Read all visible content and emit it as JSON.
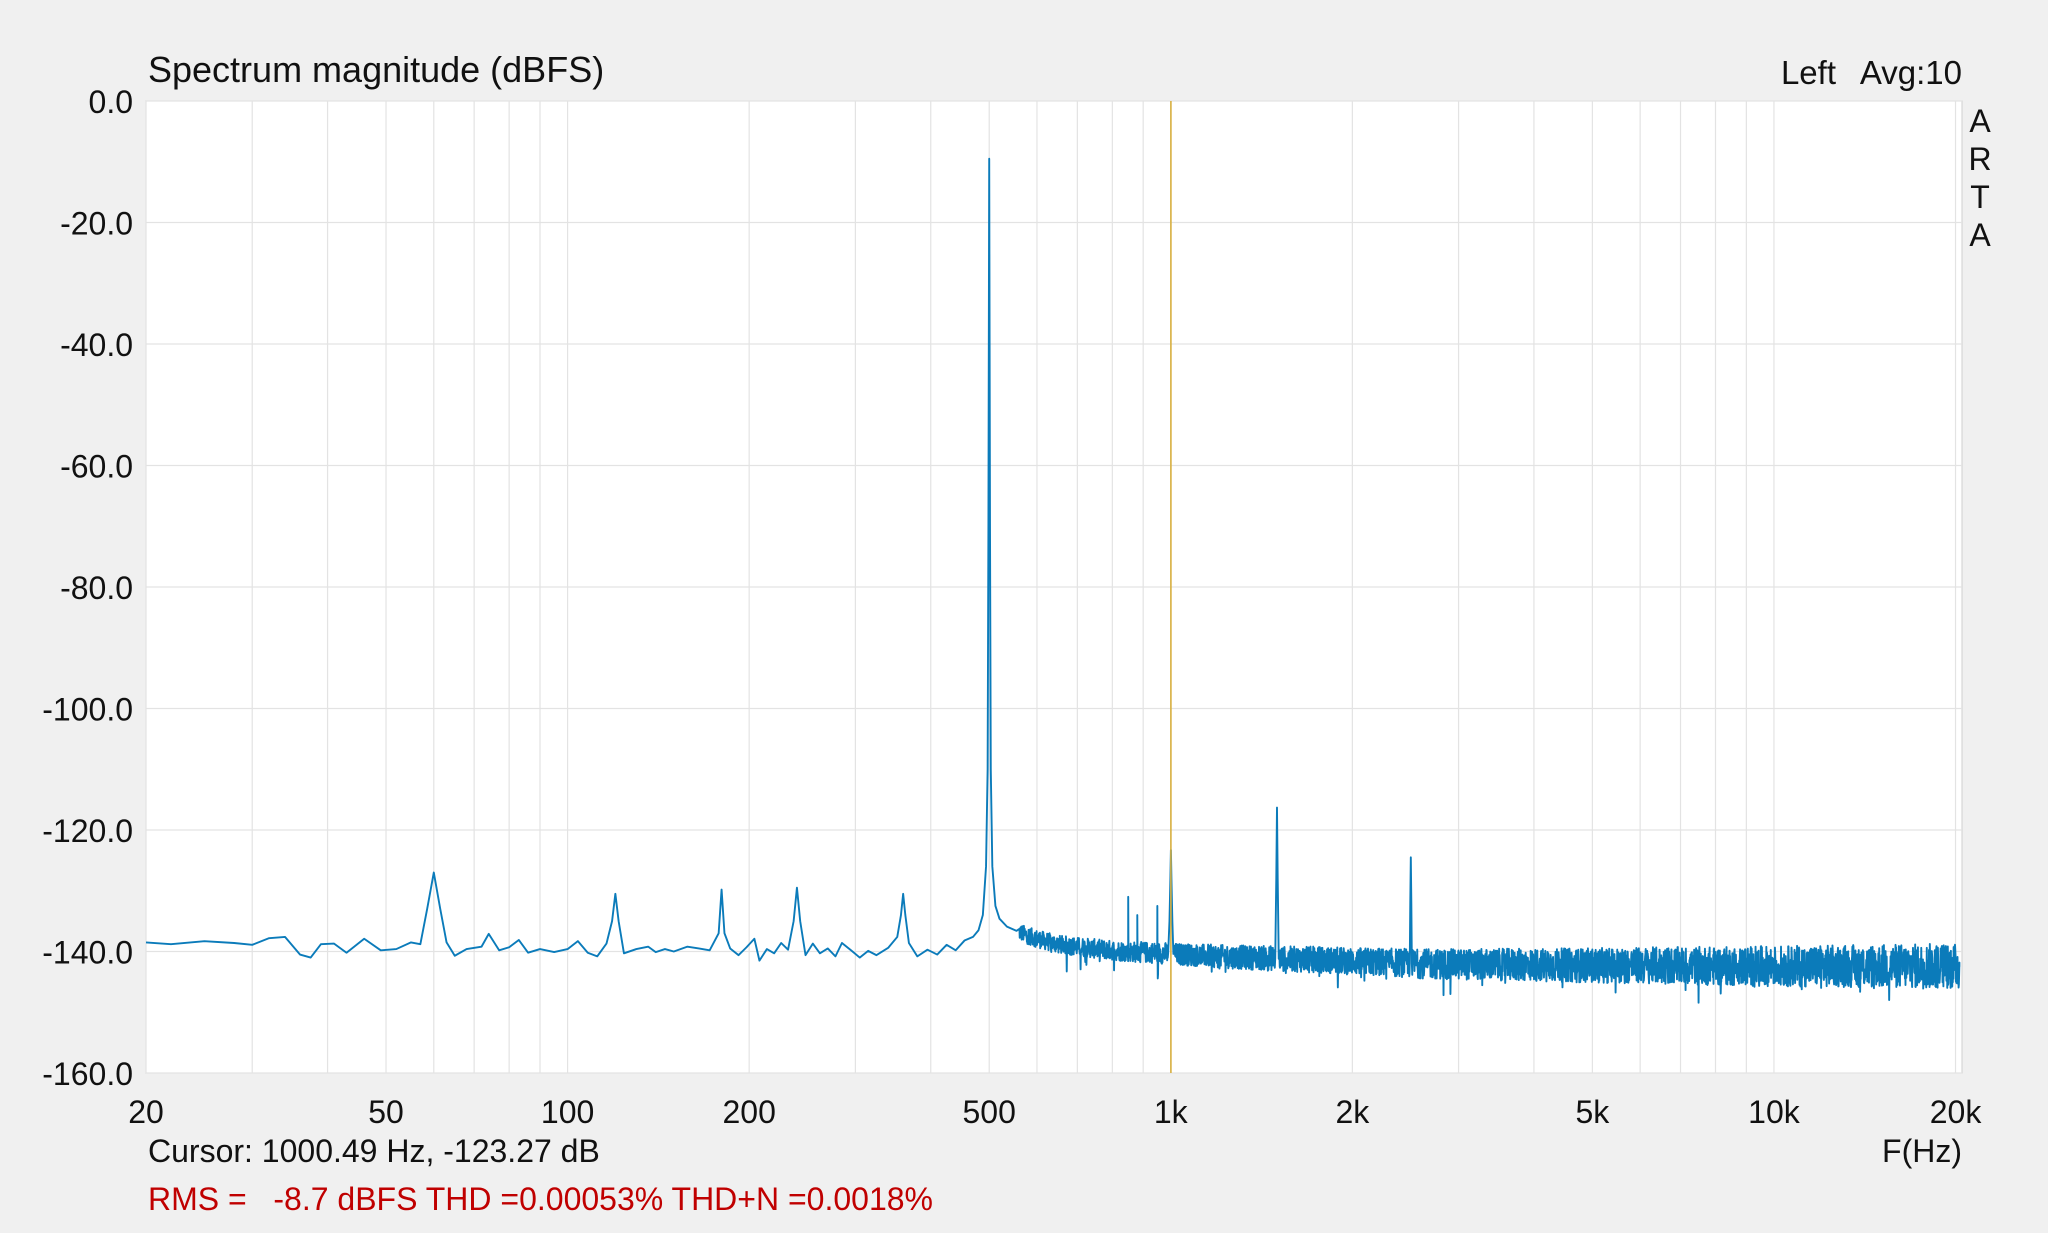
{
  "chart_data": {
    "type": "line",
    "title": "Spectrum magnitude (dBFS)",
    "xlabel": "F(Hz)",
    "ylabel": "",
    "x_scale": "log",
    "xlim": [
      20,
      20500
    ],
    "ylim": [
      -160,
      0
    ],
    "grid": true,
    "channel_label": "Left",
    "avg_label": "Avg:10",
    "side_label": [
      "A",
      "R",
      "T",
      "A"
    ],
    "y_ticks": [
      {
        "value": 0,
        "label": "0.0"
      },
      {
        "value": -20,
        "label": "-20.0"
      },
      {
        "value": -40,
        "label": "-40.0"
      },
      {
        "value": -60,
        "label": "-60.0"
      },
      {
        "value": -80,
        "label": "-80.0"
      },
      {
        "value": -100,
        "label": "-100.0"
      },
      {
        "value": -120,
        "label": "-120.0"
      },
      {
        "value": -140,
        "label": "-140.0"
      },
      {
        "value": -160,
        "label": "-160.0"
      }
    ],
    "x_ticks": [
      {
        "value": 20,
        "label": "20"
      },
      {
        "value": 50,
        "label": "50"
      },
      {
        "value": 100,
        "label": "100"
      },
      {
        "value": 200,
        "label": "200"
      },
      {
        "value": 500,
        "label": "500"
      },
      {
        "value": 1000,
        "label": "1k"
      },
      {
        "value": 2000,
        "label": "2k"
      },
      {
        "value": 5000,
        "label": "5k"
      },
      {
        "value": 10000,
        "label": "10k"
      },
      {
        "value": 20000,
        "label": "20k"
      }
    ],
    "x_minor_grid": [
      30,
      40,
      60,
      70,
      80,
      90,
      300,
      400,
      600,
      700,
      800,
      900,
      3000,
      4000,
      6000,
      7000,
      8000,
      9000
    ],
    "cursor": {
      "frequency_hz": 1000.49,
      "level_db": -123.27
    },
    "cursor_readout": "Cursor: 1000.49 Hz, -123.27 dB",
    "stats_readout": "RMS =   -8.7 dBFS THD =0.00053% THD+N =0.0018%",
    "colors": {
      "trace": "#0b7bba",
      "cursor": "#d8b040",
      "grid": "#e3e3e3",
      "stats_text": "#c00000",
      "background": "#f0f0f0",
      "plot_background": "#ffffff"
    },
    "series": [
      {
        "color": "#0b7bba",
        "noise_floor_db": -138.5,
        "points": [
          [
            20,
            -138.5
          ],
          [
            22,
            -138.8
          ],
          [
            25,
            -138.3
          ],
          [
            28,
            -138.6
          ],
          [
            30,
            -138.9
          ],
          [
            32,
            -137.8
          ],
          [
            34,
            -137.6
          ],
          [
            36,
            -140.5
          ],
          [
            37.5,
            -141.0
          ],
          [
            39,
            -138.8
          ],
          [
            41,
            -138.7
          ],
          [
            43,
            -140.2
          ],
          [
            46,
            -137.9
          ],
          [
            49,
            -139.8
          ],
          [
            52,
            -139.6
          ],
          [
            55,
            -138.5
          ],
          [
            57,
            -138.8
          ],
          [
            58.5,
            -133.0
          ],
          [
            60,
            -127.0
          ],
          [
            61.5,
            -133.0
          ],
          [
            63,
            -138.5
          ],
          [
            65,
            -140.7
          ],
          [
            68,
            -139.6
          ],
          [
            72,
            -139.2
          ],
          [
            74,
            -137.1
          ],
          [
            77,
            -139.8
          ],
          [
            80,
            -139.3
          ],
          [
            83,
            -138.1
          ],
          [
            86,
            -140.2
          ],
          [
            90,
            -139.6
          ],
          [
            95,
            -140.1
          ],
          [
            100,
            -139.6
          ],
          [
            104,
            -138.3
          ],
          [
            108,
            -140.2
          ],
          [
            112,
            -140.8
          ],
          [
            116,
            -138.7
          ],
          [
            118.5,
            -135.0
          ],
          [
            120,
            -130.5
          ],
          [
            121.5,
            -135.0
          ],
          [
            124,
            -140.3
          ],
          [
            130,
            -139.6
          ],
          [
            136,
            -139.2
          ],
          [
            140,
            -140.1
          ],
          [
            145,
            -139.6
          ],
          [
            150,
            -140.0
          ],
          [
            158,
            -139.2
          ],
          [
            165,
            -139.5
          ],
          [
            172,
            -139.8
          ],
          [
            178,
            -137.0
          ],
          [
            180,
            -129.8
          ],
          [
            182,
            -137.0
          ],
          [
            186,
            -139.5
          ],
          [
            192,
            -140.6
          ],
          [
            198,
            -139.3
          ],
          [
            204,
            -137.9
          ],
          [
            208,
            -141.5
          ],
          [
            214,
            -139.6
          ],
          [
            220,
            -140.3
          ],
          [
            226,
            -138.6
          ],
          [
            232,
            -139.7
          ],
          [
            237,
            -135.0
          ],
          [
            240,
            -129.5
          ],
          [
            243,
            -135.0
          ],
          [
            248,
            -140.6
          ],
          [
            255,
            -138.7
          ],
          [
            262,
            -140.3
          ],
          [
            270,
            -139.5
          ],
          [
            278,
            -140.8
          ],
          [
            285,
            -138.6
          ],
          [
            295,
            -139.8
          ],
          [
            305,
            -141.0
          ],
          [
            315,
            -139.9
          ],
          [
            325,
            -140.6
          ],
          [
            340,
            -139.4
          ],
          [
            352,
            -137.6
          ],
          [
            357,
            -134.0
          ],
          [
            360,
            -130.5
          ],
          [
            363,
            -134.0
          ],
          [
            368,
            -138.6
          ],
          [
            380,
            -140.8
          ],
          [
            395,
            -139.7
          ],
          [
            410,
            -140.5
          ],
          [
            425,
            -138.9
          ],
          [
            440,
            -139.8
          ],
          [
            455,
            -138.2
          ],
          [
            470,
            -137.6
          ],
          [
            480,
            -136.5
          ],
          [
            488,
            -134.0
          ],
          [
            494,
            -126.0
          ],
          [
            497,
            -110.0
          ],
          [
            498.5,
            -70.0
          ],
          [
            499.5,
            -30.0
          ],
          [
            500,
            -9.5
          ],
          [
            500.5,
            -30.0
          ],
          [
            501.5,
            -70.0
          ],
          [
            503,
            -110.0
          ],
          [
            506,
            -126.0
          ],
          [
            512,
            -132.5
          ],
          [
            520,
            -134.6
          ],
          [
            535,
            -135.9
          ],
          [
            555,
            -136.6
          ],
          [
            580,
            -137.4
          ],
          [
            610,
            -138.1
          ],
          [
            650,
            -138.8
          ],
          [
            700,
            -139.2
          ],
          [
            760,
            -139.6
          ],
          [
            820,
            -139.9
          ],
          [
            880,
            -140.1
          ],
          [
            940,
            -140.2
          ],
          [
            990,
            -140.3
          ],
          [
            995,
            -135.0
          ],
          [
            998.5,
            -128.0
          ],
          [
            1000.5,
            -123.3
          ],
          [
            1002.5,
            -128.0
          ],
          [
            1006,
            -135.0
          ],
          [
            1010,
            -140.4
          ],
          [
            1100,
            -140.6
          ],
          [
            1200,
            -140.8
          ],
          [
            1350,
            -141.0
          ],
          [
            1490,
            -141.1
          ],
          [
            1496,
            -128.0
          ],
          [
            1500,
            -116.3
          ],
          [
            1504,
            -128.0
          ],
          [
            1510,
            -141.2
          ],
          [
            1700,
            -141.3
          ],
          [
            2000,
            -141.6
          ],
          [
            2300,
            -141.8
          ],
          [
            2490,
            -141.9
          ],
          [
            2495,
            -132.0
          ],
          [
            2500,
            -124.5
          ],
          [
            2505,
            -132.0
          ],
          [
            2510,
            -142.0
          ],
          [
            3000,
            -142.1
          ],
          [
            4000,
            -142.2
          ],
          [
            5000,
            -142.3
          ],
          [
            6500,
            -142.3
          ],
          [
            8000,
            -142.4
          ],
          [
            10000,
            -142.4
          ],
          [
            13000,
            -142.4
          ],
          [
            16000,
            -142.4
          ],
          [
            19000,
            -142.4
          ],
          [
            20300,
            -142.5
          ]
        ],
        "small_peaks": [
          [
            850,
            -131.0
          ],
          [
            880,
            -134.0
          ],
          [
            950,
            -132.5
          ]
        ]
      }
    ]
  }
}
